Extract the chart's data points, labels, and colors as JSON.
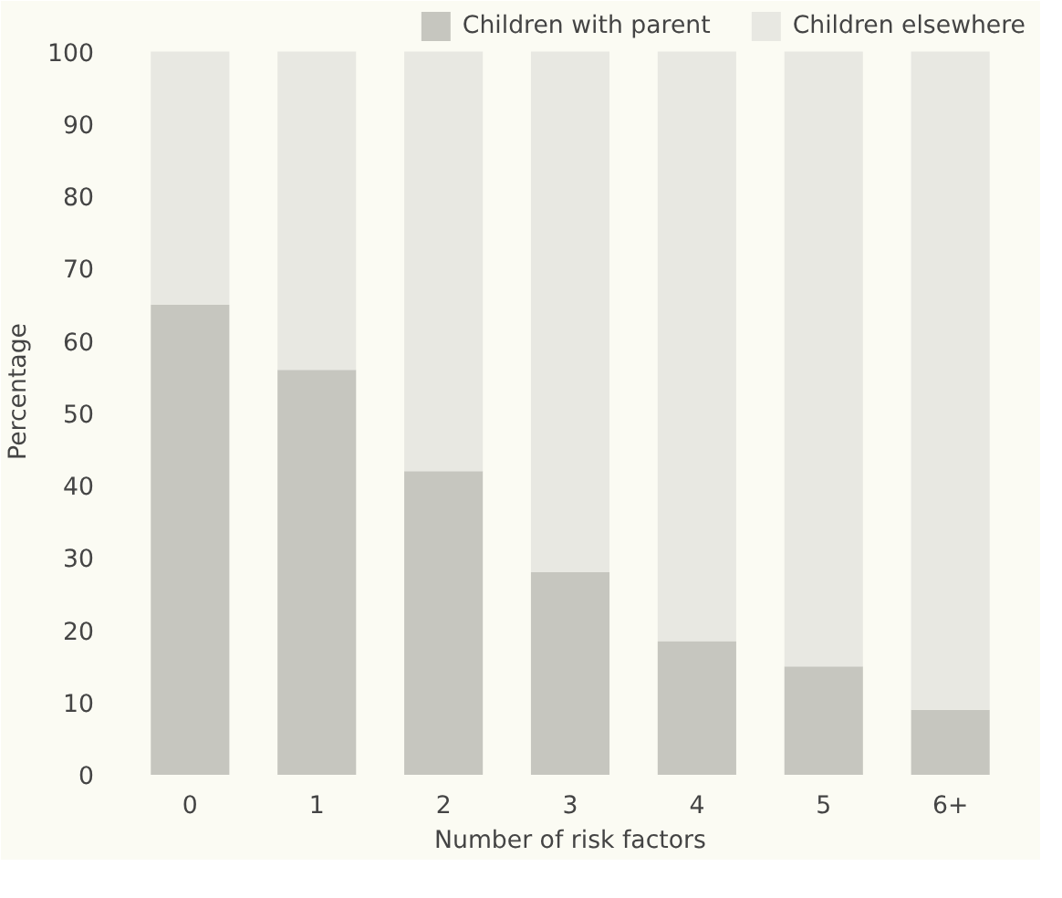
{
  "chart_data": {
    "type": "bar",
    "stacked": true,
    "xlabel": "Number of risk factors",
    "ylabel": "Percentage",
    "categories": [
      "0",
      "1",
      "2",
      "3",
      "4",
      "5",
      "6+"
    ],
    "series": [
      {
        "name": "Children with parent",
        "color": "#c6c6bf",
        "values": [
          65,
          56,
          42,
          28,
          18.5,
          15,
          9
        ]
      },
      {
        "name": "Children elsewhere",
        "color": "#e8e8e2",
        "values": [
          35,
          44,
          58,
          72,
          81.5,
          85,
          91
        ]
      }
    ],
    "ylim": [
      0,
      106
    ],
    "yticks": [
      0,
      10,
      20,
      30,
      40,
      50,
      60,
      70,
      80,
      90,
      100
    ],
    "grid": false,
    "legend": "top"
  }
}
